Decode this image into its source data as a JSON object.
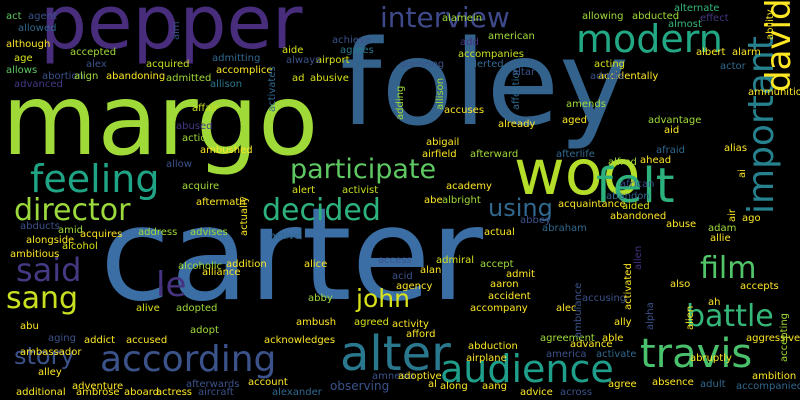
{
  "words": [
    {
      "id": "carter",
      "text": "carter",
      "color": "#3a6ea5"
    },
    {
      "id": "foley",
      "text": "foley",
      "color": "#33638d"
    },
    {
      "id": "margo",
      "text": "margo",
      "color": "#a0da39"
    },
    {
      "id": "pepper",
      "text": "pepper",
      "color": "#472d7b"
    },
    {
      "id": "woo",
      "text": "woo",
      "color": "#b5de2b"
    },
    {
      "id": "alter",
      "text": "alter",
      "color": "#2a788e"
    },
    {
      "id": "according",
      "text": "according",
      "color": "#3b528b"
    },
    {
      "id": "audience",
      "text": "audience",
      "color": "#1f9e89"
    },
    {
      "id": "travis",
      "text": "travis",
      "color": "#4ac16d"
    },
    {
      "id": "feeling",
      "text": "feeling",
      "color": "#20a486"
    },
    {
      "id": "felt",
      "text": "felt",
      "color": "#2db27d"
    },
    {
      "id": "decided",
      "text": "decided",
      "color": "#2db27d"
    },
    {
      "id": "director",
      "text": "director",
      "color": "#9bd93c"
    },
    {
      "id": "participate",
      "text": "participate",
      "color": "#5ec962"
    },
    {
      "id": "interview",
      "text": "interview",
      "color": "#3e4989"
    },
    {
      "id": "modern",
      "text": "modern",
      "color": "#22a884"
    },
    {
      "id": "important",
      "text": "important",
      "color": "#26828e"
    },
    {
      "id": "david",
      "text": "david",
      "color": "#fde725"
    },
    {
      "id": "said",
      "text": "said",
      "color": "#443983"
    },
    {
      "id": "sang",
      "text": "sang",
      "color": "#c8e020"
    },
    {
      "id": "le",
      "text": "le",
      "color": "#46327e"
    },
    {
      "id": "film",
      "text": "film",
      "color": "#52c569"
    },
    {
      "id": "battle",
      "text": "battle",
      "color": "#35b779"
    },
    {
      "id": "john",
      "text": "john",
      "color": "#d8e219"
    },
    {
      "id": "story",
      "text": "story",
      "color": "#3b528b"
    },
    {
      "id": "using",
      "text": "using",
      "color": "#31688e"
    },
    {
      "id": "act",
      "text": "act",
      "color": "#5ec962"
    },
    {
      "id": "agent",
      "text": "agent",
      "color": "#3b528b"
    },
    {
      "id": "allowed",
      "text": "allowed",
      "color": "#31688e"
    },
    {
      "id": "although",
      "text": "although",
      "color": "#fde725"
    },
    {
      "id": "accepted",
      "text": "accepted",
      "color": "#a0da39"
    },
    {
      "id": "age",
      "text": "age",
      "color": "#d8e219"
    },
    {
      "id": "allows",
      "text": "allows",
      "color": "#5ec962"
    },
    {
      "id": "abortion",
      "text": "abortion",
      "color": "#3b528b"
    },
    {
      "id": "align",
      "text": "align",
      "color": "#a0da39"
    },
    {
      "id": "abandoning",
      "text": "abandoning",
      "color": "#fde725"
    },
    {
      "id": "admitted",
      "text": "admitted",
      "color": "#a0da39"
    },
    {
      "id": "alex",
      "text": "alex",
      "color": "#3b528b"
    },
    {
      "id": "acquired",
      "text": "acquired",
      "color": "#c8e020"
    },
    {
      "id": "admitting",
      "text": "admitting",
      "color": "#31688e"
    },
    {
      "id": "accomplice",
      "text": "accomplice",
      "color": "#fde725"
    },
    {
      "id": "allison_small",
      "text": "allison",
      "color": "#2a788e"
    },
    {
      "id": "alamein",
      "text": "alamein",
      "color": "#a0da39"
    },
    {
      "id": "american",
      "text": "american",
      "color": "#a0da39"
    },
    {
      "id": "add",
      "text": "add",
      "color": "#46327e"
    },
    {
      "id": "accompanies",
      "text": "accompanies",
      "color": "#c8e020"
    },
    {
      "id": "alerted",
      "text": "alerted",
      "color": "#31688e"
    },
    {
      "id": "acting",
      "text": "acting",
      "color": "#d8e219"
    },
    {
      "id": "accidentally",
      "text": "accidentally",
      "color": "#fde725"
    },
    {
      "id": "allowing",
      "text": "allowing",
      "color": "#a0da39"
    },
    {
      "id": "abducted",
      "text": "abducted",
      "color": "#a0da39"
    },
    {
      "id": "almost",
      "text": "almost",
      "color": "#35b779"
    },
    {
      "id": "alternate",
      "text": "alternate",
      "color": "#35b779"
    },
    {
      "id": "albert",
      "text": "albert",
      "color": "#fde725"
    },
    {
      "id": "alarm",
      "text": "alarm",
      "color": "#fde725"
    },
    {
      "id": "actor",
      "text": "actor",
      "color": "#31688e"
    },
    {
      "id": "admits",
      "text": "admits",
      "color": "#3b528b"
    },
    {
      "id": "ammunition",
      "text": "ammunition",
      "color": "#fde725"
    },
    {
      "id": "achieve",
      "text": "achieve",
      "color": "#3b528b"
    },
    {
      "id": "agrees",
      "text": "agrees",
      "color": "#2a788e"
    },
    {
      "id": "aide",
      "text": "aide",
      "color": "#d8e219"
    },
    {
      "id": "airport",
      "text": "airport",
      "color": "#d8e219"
    },
    {
      "id": "always",
      "text": "always",
      "color": "#3b528b"
    },
    {
      "id": "ad",
      "text": "ad",
      "color": "#d8e219"
    },
    {
      "id": "abusive",
      "text": "abusive",
      "color": "#d8e219"
    },
    {
      "id": "agreeing",
      "text": "agreeing",
      "color": "#3b528b"
    },
    {
      "id": "altar",
      "text": "altar",
      "color": "#3b528b"
    },
    {
      "id": "accuses",
      "text": "accuses",
      "color": "#fde725"
    },
    {
      "id": "amends",
      "text": "amends",
      "color": "#a0da39"
    },
    {
      "id": "aged",
      "text": "aged",
      "color": "#fde725"
    },
    {
      "id": "advantage",
      "text": "advantage",
      "color": "#a0da39"
    },
    {
      "id": "aid",
      "text": "aid",
      "color": "#fde725"
    },
    {
      "id": "affair",
      "text": "affair",
      "color": "#c8e020"
    },
    {
      "id": "abused",
      "text": "abused",
      "color": "#443983"
    },
    {
      "id": "action",
      "text": "action",
      "color": "#a0da39"
    },
    {
      "id": "ambushed",
      "text": "ambushed",
      "color": "#fde725"
    },
    {
      "id": "abigail",
      "text": "abigail",
      "color": "#fde725"
    },
    {
      "id": "airfield",
      "text": "airfield",
      "color": "#fde725"
    },
    {
      "id": "afterward",
      "text": "afterward",
      "color": "#a0da39"
    },
    {
      "id": "afterlife",
      "text": "afterlife",
      "color": "#31688e"
    },
    {
      "id": "already",
      "text": "already",
      "color": "#fde725"
    },
    {
      "id": "alfred",
      "text": "alfred",
      "color": "#a0da39"
    },
    {
      "id": "ahead",
      "text": "ahead",
      "color": "#fde725"
    },
    {
      "id": "alias",
      "text": "alias",
      "color": "#fde725"
    },
    {
      "id": "afraid",
      "text": "afraid",
      "color": "#31688e"
    },
    {
      "id": "allow",
      "text": "allow",
      "color": "#3b528b"
    },
    {
      "id": "acquire",
      "text": "acquire",
      "color": "#a0da39"
    },
    {
      "id": "alert",
      "text": "alert",
      "color": "#d8e219"
    },
    {
      "id": "activist",
      "text": "activist",
      "color": "#c8e020"
    },
    {
      "id": "academy",
      "text": "academy",
      "color": "#fde725"
    },
    {
      "id": "african",
      "text": "african",
      "color": "#3b528b"
    },
    {
      "id": "aftermath",
      "text": "aftermath",
      "color": "#fde725"
    },
    {
      "id": "abe",
      "text": "abe",
      "color": "#fde725"
    },
    {
      "id": "albright",
      "text": "albright",
      "color": "#a0da39"
    },
    {
      "id": "abbey",
      "text": "abbey",
      "color": "#3b528b"
    },
    {
      "id": "acquaintance",
      "text": "acquaintance",
      "color": "#fde725"
    },
    {
      "id": "aided",
      "text": "aided",
      "color": "#d8e219"
    },
    {
      "id": "abandon",
      "text": "abandon",
      "color": "#31688e"
    },
    {
      "id": "abandoned",
      "text": "abandoned",
      "color": "#fde725"
    },
    {
      "id": "abducts",
      "text": "abducts",
      "color": "#3b528b"
    },
    {
      "id": "amid",
      "text": "amid",
      "color": "#a0da39"
    },
    {
      "id": "acquires",
      "text": "acquires",
      "color": "#fde725"
    },
    {
      "id": "alongside",
      "text": "alongside",
      "color": "#fde725"
    },
    {
      "id": "alcohol",
      "text": "alcohol",
      "color": "#d8e219"
    },
    {
      "id": "address",
      "text": "address",
      "color": "#a0da39"
    },
    {
      "id": "advises",
      "text": "advises",
      "color": "#a0da39"
    },
    {
      "id": "active",
      "text": "active",
      "color": "#31688e"
    },
    {
      "id": "actual",
      "text": "actual",
      "color": "#fde725"
    },
    {
      "id": "abraham",
      "text": "abraham",
      "color": "#31688e"
    },
    {
      "id": "abuse",
      "text": "abuse",
      "color": "#fde725"
    },
    {
      "id": "adam",
      "text": "adam",
      "color": "#a0da39"
    },
    {
      "id": "allie",
      "text": "allie",
      "color": "#fde725"
    },
    {
      "id": "ago",
      "text": "ago",
      "color": "#fde725"
    },
    {
      "id": "ambitious",
      "text": "ambitious",
      "color": "#fde725"
    },
    {
      "id": "alcoholic",
      "text": "alcoholic",
      "color": "#a0da39"
    },
    {
      "id": "addition",
      "text": "addition",
      "color": "#fde725"
    },
    {
      "id": "alliance",
      "text": "alliance",
      "color": "#fde725"
    },
    {
      "id": "alice",
      "text": "alice",
      "color": "#fde725"
    },
    {
      "id": "access",
      "text": "access",
      "color": "#3b528b"
    },
    {
      "id": "admiral",
      "text": "admiral",
      "color": "#d8e219"
    },
    {
      "id": "acid",
      "text": "acid",
      "color": "#3b528b"
    },
    {
      "id": "alan",
      "text": "alan",
      "color": "#fde725"
    },
    {
      "id": "accept",
      "text": "accept",
      "color": "#a0da39"
    },
    {
      "id": "admit",
      "text": "admit",
      "color": "#fde725"
    },
    {
      "id": "aaron",
      "text": "aaron",
      "color": "#fde725"
    },
    {
      "id": "agency",
      "text": "agency",
      "color": "#fde725"
    },
    {
      "id": "accident",
      "text": "accident",
      "color": "#fde725"
    },
    {
      "id": "alec",
      "text": "alec",
      "color": "#fde725"
    },
    {
      "id": "accompany",
      "text": "accompany",
      "color": "#fde725"
    },
    {
      "id": "also",
      "text": "also",
      "color": "#fde725"
    },
    {
      "id": "accepts",
      "text": "accepts",
      "color": "#fde725"
    },
    {
      "id": "ah",
      "text": "ah",
      "color": "#fde725"
    },
    {
      "id": "alive",
      "text": "alive",
      "color": "#d8e219"
    },
    {
      "id": "adopted",
      "text": "adopted",
      "color": "#a0da39"
    },
    {
      "id": "adopt",
      "text": "adopt",
      "color": "#a0da39"
    },
    {
      "id": "abby",
      "text": "abby",
      "color": "#a0da39"
    },
    {
      "id": "ambush",
      "text": "ambush",
      "color": "#fde725"
    },
    {
      "id": "agreed",
      "text": "agreed",
      "color": "#d8e219"
    },
    {
      "id": "activity",
      "text": "activity",
      "color": "#fde725"
    },
    {
      "id": "accusing",
      "text": "accusing",
      "color": "#3b528b"
    },
    {
      "id": "ally",
      "text": "ally",
      "color": "#fde725"
    },
    {
      "id": "abu",
      "text": "abu",
      "color": "#fde725"
    },
    {
      "id": "aging",
      "text": "aging",
      "color": "#3b528b"
    },
    {
      "id": "addict",
      "text": "addict",
      "color": "#fde725"
    },
    {
      "id": "accused",
      "text": "accused",
      "color": "#fde725"
    },
    {
      "id": "acknowledges",
      "text": "acknowledges",
      "color": "#fde725"
    },
    {
      "id": "afford",
      "text": "afford",
      "color": "#fde725"
    },
    {
      "id": "agreement",
      "text": "agreement",
      "color": "#a0da39"
    },
    {
      "id": "able",
      "text": "able",
      "color": "#fde725"
    },
    {
      "id": "aggressive",
      "text": "aggressive",
      "color": "#fde725"
    },
    {
      "id": "ambassador",
      "text": "ambassador",
      "color": "#fde725"
    },
    {
      "id": "abduction",
      "text": "abduction",
      "color": "#fde725"
    },
    {
      "id": "airplane",
      "text": "airplane",
      "color": "#fde725"
    },
    {
      "id": "advance",
      "text": "advance",
      "color": "#fde725"
    },
    {
      "id": "america",
      "text": "america",
      "color": "#3b528b"
    },
    {
      "id": "activate",
      "text": "activate",
      "color": "#31688e"
    },
    {
      "id": "abruptly",
      "text": "abruptly",
      "color": "#fde725"
    },
    {
      "id": "alley",
      "text": "alley",
      "color": "#fde725"
    },
    {
      "id": "adventure",
      "text": "adventure",
      "color": "#fde725"
    },
    {
      "id": "amnesia",
      "text": "amnesia",
      "color": "#3b528b"
    },
    {
      "id": "adoptive",
      "text": "adoptive",
      "color": "#fde725"
    },
    {
      "id": "observing",
      "text": "observing",
      "color": "#3b528b"
    },
    {
      "id": "ambition",
      "text": "ambition",
      "color": "#fde725"
    },
    {
      "id": "absence",
      "text": "absence",
      "color": "#fde725"
    },
    {
      "id": "adult",
      "text": "adult",
      "color": "#31688e"
    },
    {
      "id": "accompanied",
      "text": "accompanied",
      "color": "#31688e"
    },
    {
      "id": "ambrose",
      "text": "ambrose",
      "color": "#fde725"
    },
    {
      "id": "aboard",
      "text": "aboard",
      "color": "#fde725"
    },
    {
      "id": "actress",
      "text": "actress",
      "color": "#fde725"
    },
    {
      "id": "afterwards",
      "text": "afterwards",
      "color": "#3b528b"
    },
    {
      "id": "aircraft",
      "text": "aircraft",
      "color": "#3b528b"
    },
    {
      "id": "account",
      "text": "account",
      "color": "#fde725"
    },
    {
      "id": "alexander",
      "text": "alexander",
      "color": "#31688e"
    },
    {
      "id": "al",
      "text": "al",
      "color": "#fde725"
    },
    {
      "id": "along",
      "text": "along",
      "color": "#fde725"
    },
    {
      "id": "aang",
      "text": "aang",
      "color": "#fde725"
    },
    {
      "id": "advice",
      "text": "advice",
      "color": "#fde725"
    },
    {
      "id": "across",
      "text": "across",
      "color": "#3b528b"
    },
    {
      "id": "agree",
      "text": "agree",
      "color": "#fde725"
    },
    {
      "id": "additional",
      "text": "additional",
      "color": "#fde725"
    },
    {
      "id": "advanced",
      "text": "advanced",
      "color": "#443983"
    },
    {
      "id": "aim",
      "text": "aim",
      "color": "#3b528b"
    },
    {
      "id": "allison_v",
      "text": "allison",
      "color": "#a0da39"
    },
    {
      "id": "adding",
      "text": "adding",
      "color": "#a0da39"
    },
    {
      "id": "affection",
      "text": "affection",
      "color": "#31688e"
    },
    {
      "id": "activates",
      "text": "activates",
      "color": "#31688e"
    },
    {
      "id": "ability",
      "text": "ability",
      "color": "#fde725"
    },
    {
      "id": "effect",
      "text": "effect",
      "color": "#443983"
    },
    {
      "id": "alien",
      "text": "alien",
      "color": "#fde725"
    },
    {
      "id": "alpha",
      "text": "alpha",
      "color": "#3b528b"
    },
    {
      "id": "activated",
      "text": "activated",
      "color": "#fde725"
    },
    {
      "id": "ambulance",
      "text": "ambulance",
      "color": "#3b528b"
    },
    {
      "id": "allen",
      "text": "allen",
      "color": "#46327e"
    },
    {
      "id": "ai",
      "text": "ai",
      "color": "#fde725"
    },
    {
      "id": "accepting",
      "text": "accepting",
      "color": "#a0da39"
    },
    {
      "id": "air",
      "text": "air",
      "color": "#fde725"
    },
    {
      "id": "actually",
      "text": "actually",
      "color": "#fde725"
    }
  ]
}
